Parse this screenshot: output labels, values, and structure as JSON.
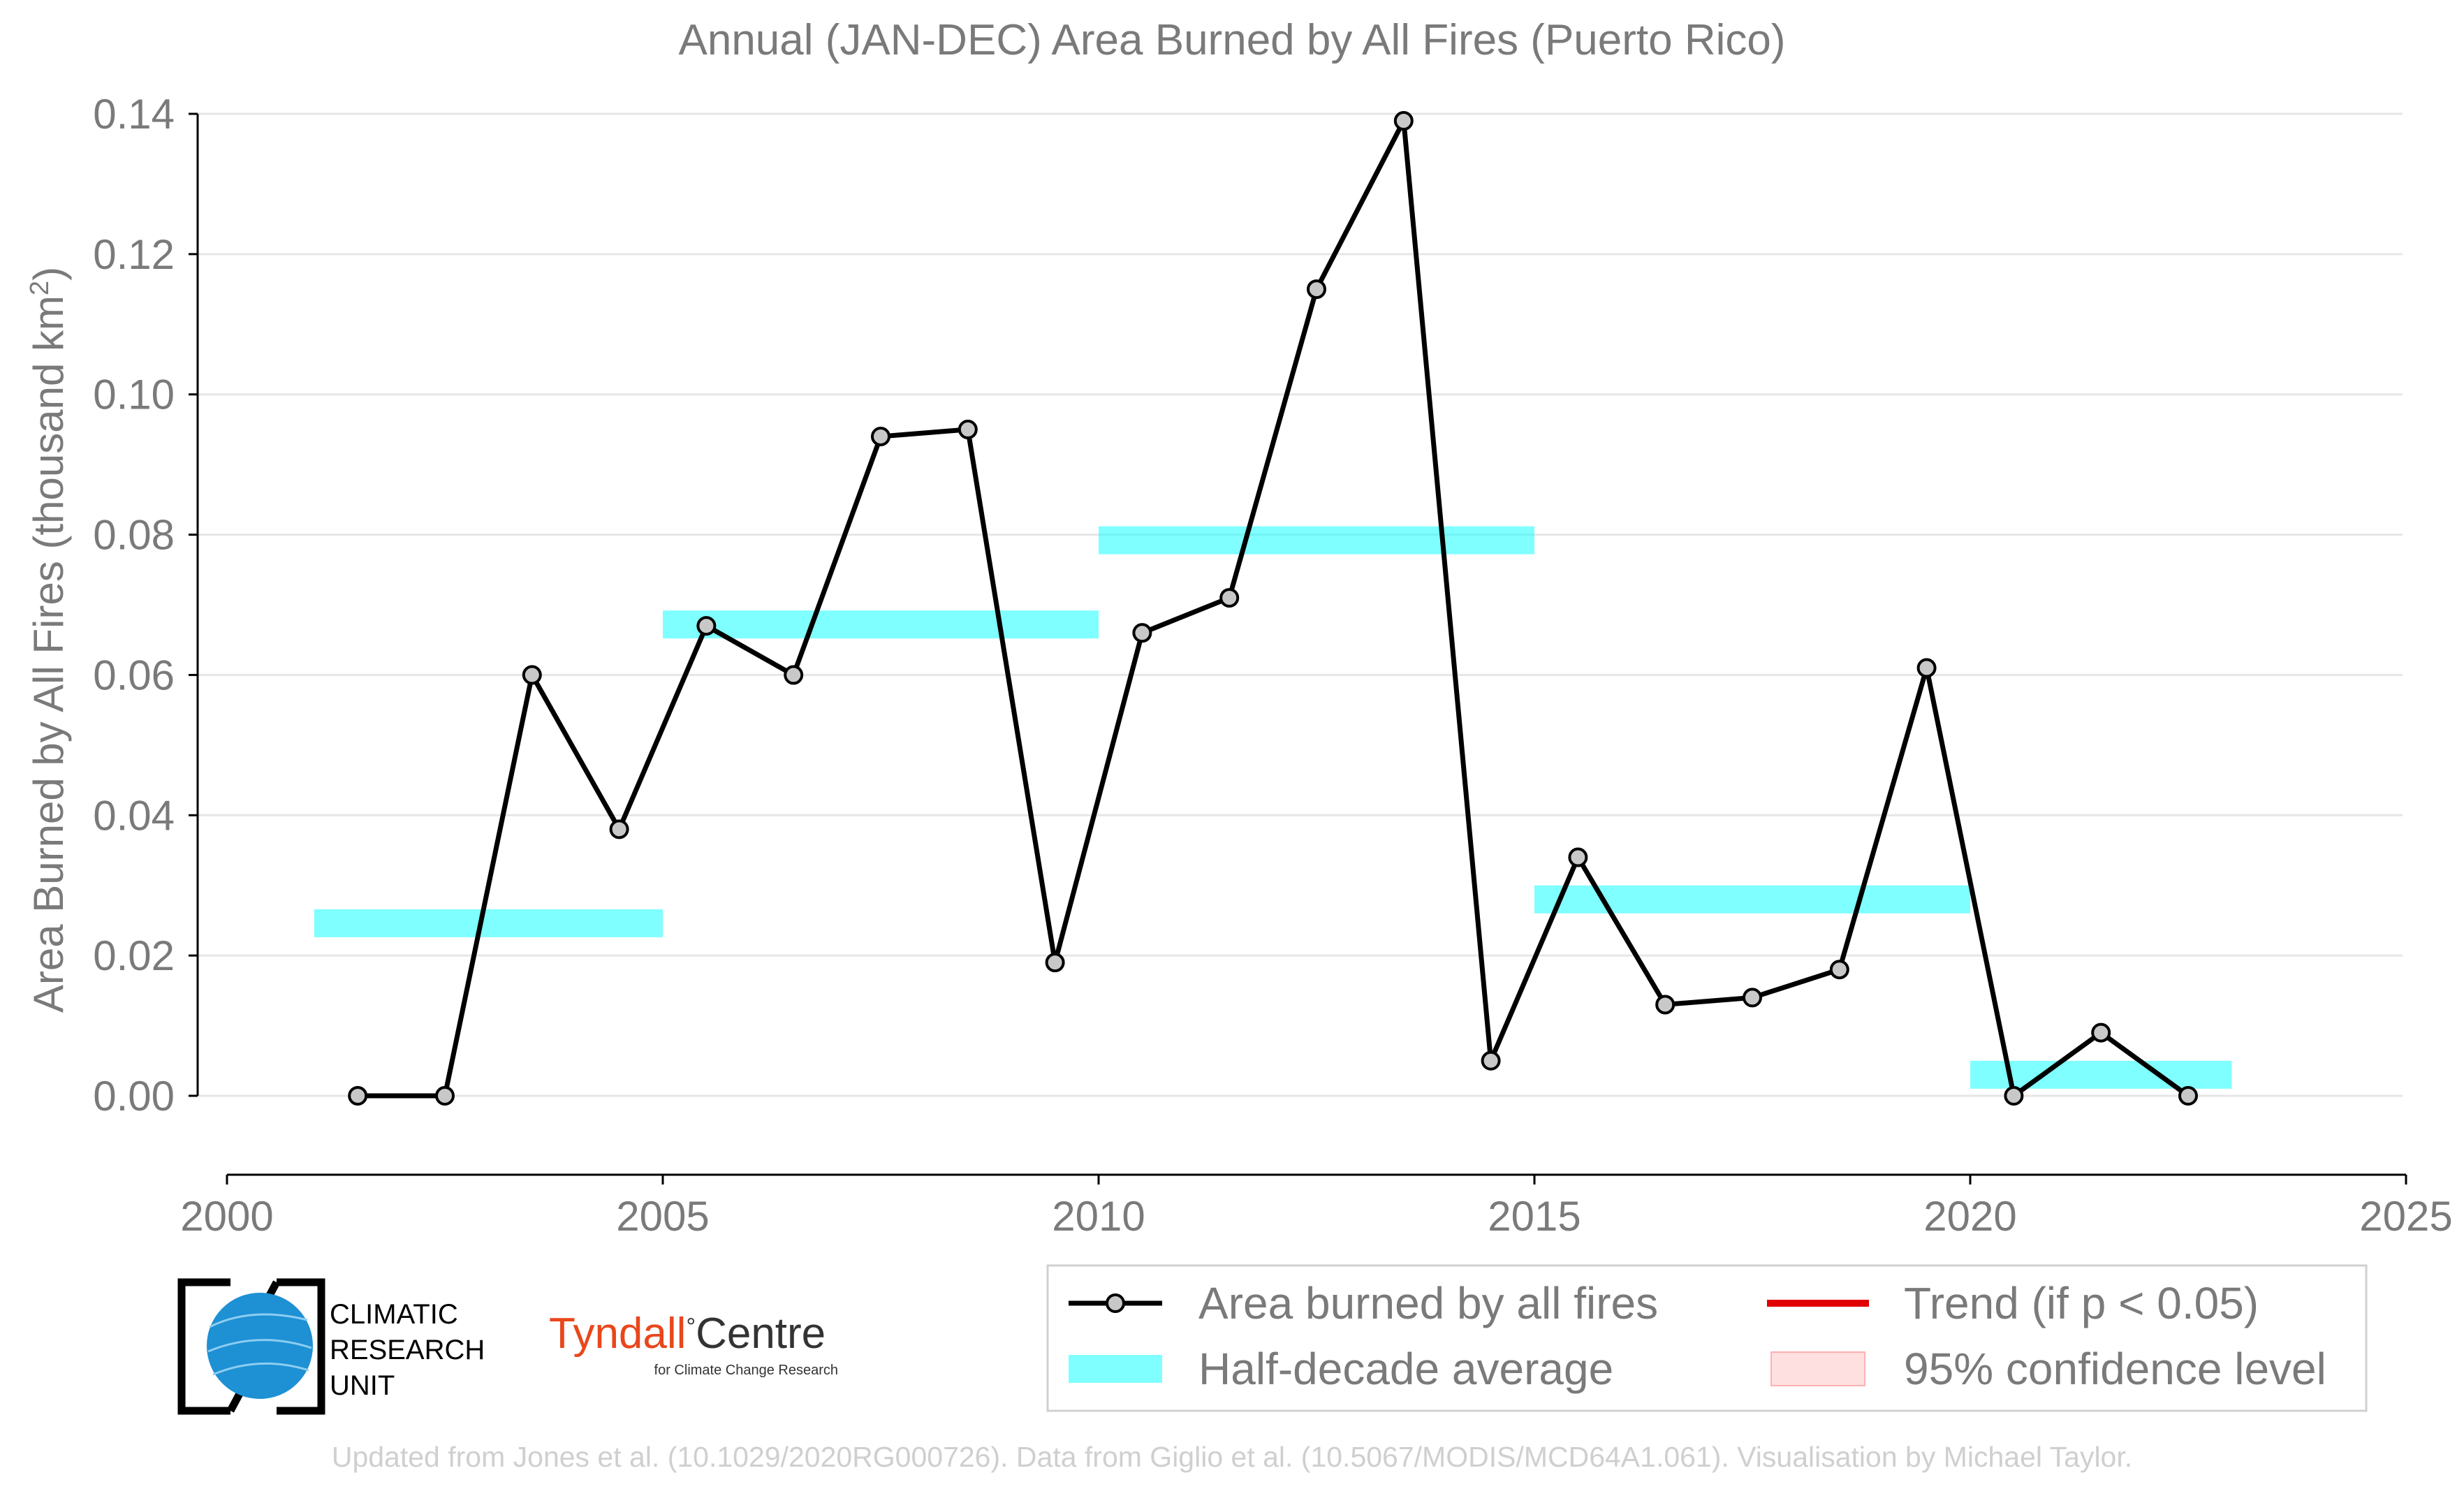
{
  "chart_data": {
    "type": "line",
    "title": "Annual (JAN-DEC) Area Burned by All Fires (Puerto Rico)",
    "ylabel": "Area Burned by All Fires (thousand km",
    "ylabel_sup": "2",
    "ylabel_end": ")",
    "xlim": [
      2000,
      2025
    ],
    "ylim": [
      -0.011,
      0.14
    ],
    "x_ticks": [
      2000,
      2005,
      2010,
      2015,
      2020,
      2025
    ],
    "y_ticks": [
      0.0,
      0.02,
      0.04,
      0.06,
      0.08,
      0.1,
      0.12,
      0.14
    ],
    "grid": "horizontal",
    "series": [
      {
        "name": "Area burned by all fires",
        "color": "#000000",
        "marker_color": "#c8c8c8",
        "x": [
          2001.5,
          2002.5,
          2003.5,
          2004.5,
          2005.5,
          2006.5,
          2007.5,
          2008.5,
          2009.5,
          2010.5,
          2011.5,
          2012.5,
          2013.5,
          2014.5,
          2015.5,
          2016.5,
          2017.5,
          2018.5,
          2019.5,
          2020.5,
          2021.5,
          2022.5
        ],
        "values": [
          0.0,
          0.0,
          0.06,
          0.038,
          0.067,
          0.06,
          0.094,
          0.095,
          0.019,
          0.066,
          0.071,
          0.115,
          0.139,
          0.005,
          0.034,
          0.013,
          0.014,
          0.018,
          0.061,
          0.0,
          0.009,
          0.0
        ]
      },
      {
        "name": "Half-decade average",
        "color": "#00ffff",
        "segments": [
          {
            "x": [
              2001,
              2005
            ],
            "value": 0.0246
          },
          {
            "x": [
              2005,
              2010
            ],
            "value": 0.0672
          },
          {
            "x": [
              2010,
              2015
            ],
            "value": 0.0792
          },
          {
            "x": [
              2015,
              2020
            ],
            "value": 0.028
          },
          {
            "x": [
              2020,
              2023
            ],
            "value": 0.003
          }
        ]
      }
    ],
    "legend": {
      "placement": "bottom-right",
      "entries": [
        {
          "label": "Area burned by all fires",
          "kind": "line-marker",
          "color": "#000000"
        },
        {
          "label": "Trend (if p < 0.05)",
          "kind": "line",
          "color": "#e00000"
        },
        {
          "label": "Half-decade average",
          "kind": "band",
          "color": "#00ffff"
        },
        {
          "label": "95% confidence level",
          "kind": "patch",
          "color": "#ffcccc"
        }
      ]
    }
  },
  "logos": {
    "cru_line1": "CLIMATIC",
    "cru_line2": "RESEARCH",
    "cru_line3": "UNIT",
    "tyndall_red": "Tyndall",
    "tyndall_degree": "°",
    "tyndall_black": "Centre",
    "tyndall_sub": "for Climate Change Research"
  },
  "footer": "Updated from Jones et al. (10.1029/2020RG000726). Data from Giglio et al. (10.5067/MODIS/MCD64A1.061). Visualisation by Michael Taylor."
}
